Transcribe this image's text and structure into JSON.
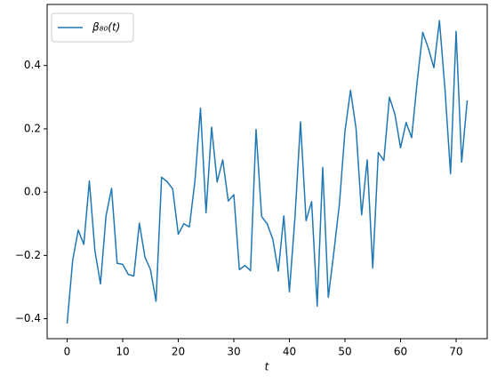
{
  "chart_data": {
    "type": "line",
    "xlabel": "t",
    "x": [
      0,
      1,
      2,
      3,
      4,
      5,
      6,
      7,
      8,
      9,
      10,
      11,
      12,
      13,
      14,
      15,
      16,
      17,
      18,
      19,
      20,
      21,
      22,
      23,
      24,
      25,
      26,
      27,
      28,
      29,
      30,
      31,
      32,
      33,
      34,
      35,
      36,
      37,
      38,
      39,
      40,
      41,
      42,
      43,
      44,
      45,
      46,
      47,
      48,
      49,
      50,
      51,
      52,
      53,
      54,
      55,
      56,
      57,
      58,
      59,
      60,
      61,
      62,
      63,
      64,
      65,
      66,
      67,
      68,
      69,
      70,
      71,
      72
    ],
    "series": [
      {
        "name": "β₈₀(t)",
        "color": "#1f77b4",
        "values": [
          -0.415,
          -0.215,
          -0.12,
          -0.165,
          0.035,
          -0.185,
          -0.29,
          -0.075,
          0.012,
          -0.225,
          -0.228,
          -0.26,
          -0.265,
          -0.098,
          -0.205,
          -0.245,
          -0.345,
          0.047,
          0.033,
          0.01,
          -0.133,
          -0.1,
          -0.11,
          0.035,
          0.265,
          -0.065,
          0.205,
          0.032,
          0.102,
          -0.028,
          -0.008,
          -0.245,
          -0.232,
          -0.248,
          0.198,
          -0.077,
          -0.1,
          -0.148,
          -0.25,
          -0.075,
          -0.315,
          -0.08,
          0.222,
          -0.09,
          -0.03,
          -0.36,
          0.078,
          -0.332,
          -0.19,
          -0.037,
          0.192,
          0.322,
          0.2,
          -0.072,
          0.102,
          -0.24,
          0.125,
          0.1,
          0.3,
          0.245,
          0.14,
          0.22,
          0.172,
          0.35,
          0.505,
          0.455,
          0.393,
          0.542,
          0.325,
          0.058,
          0.508,
          0.095,
          0.29
        ]
      }
    ],
    "xlim": [
      -3.6,
      75.6
    ],
    "xticks": [
      0,
      10,
      20,
      30,
      40,
      50,
      60,
      70
    ],
    "ylim": [
      -0.463,
      0.593
    ],
    "yticks": [
      {
        "value": -0.4,
        "label": "−0.4"
      },
      {
        "value": -0.2,
        "label": "−0.2"
      },
      {
        "value": 0,
        "label": "0.0"
      },
      0.2,
      0.4
    ],
    "legend": "upper left"
  }
}
